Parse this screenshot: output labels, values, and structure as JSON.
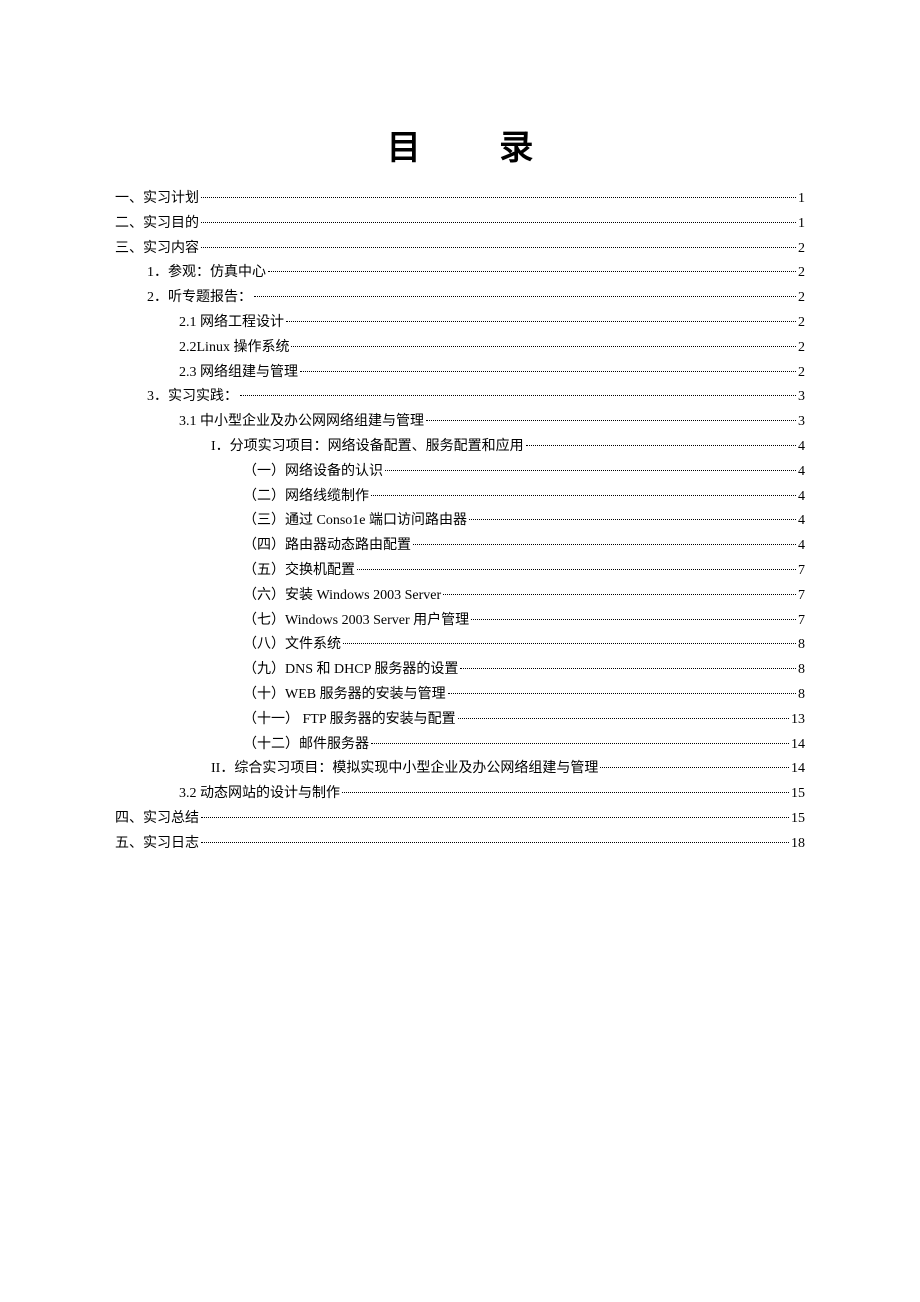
{
  "title": "目 录",
  "toc": [
    {
      "indent": 0,
      "label": "一、实习计划",
      "page": "1"
    },
    {
      "indent": 0,
      "label": "二、实习目的",
      "page": "1"
    },
    {
      "indent": 0,
      "label": "三、实习内容",
      "page": "2"
    },
    {
      "indent": 1,
      "label": "1．参观：仿真中心",
      "page": "2"
    },
    {
      "indent": 1,
      "label": "2．听专题报告：",
      "page": "2"
    },
    {
      "indent": 2,
      "label": "2.1 网络工程设计",
      "page": "2"
    },
    {
      "indent": 2,
      "label": "2.2Linux 操作系统",
      "page": "2"
    },
    {
      "indent": 2,
      "label": "2.3 网络组建与管理",
      "page": "2"
    },
    {
      "indent": 1,
      "label": "3．实习实践：",
      "page": "3"
    },
    {
      "indent": 2,
      "label": "3.1 中小型企业及办公网网络组建与管理",
      "page": "3"
    },
    {
      "indent": 3,
      "label": "I．分项实习项目：网络设备配置、服务配置和应用",
      "page": "4"
    },
    {
      "indent": 4,
      "label": "（一）网络设备的认识",
      "page": "4"
    },
    {
      "indent": 4,
      "label": "（二）网络线缆制作",
      "page": "4"
    },
    {
      "indent": 4,
      "label": "（三）通过 Conso1e 端口访问路由器",
      "page": "4"
    },
    {
      "indent": 4,
      "label": "（四）路由器动态路由配置",
      "page": "4"
    },
    {
      "indent": 4,
      "label": "（五）交换机配置",
      "page": "7"
    },
    {
      "indent": 4,
      "label": "（六）安装 Windows 2003 Server",
      "page": "7"
    },
    {
      "indent": 4,
      "label": "（七）Windows 2003 Server 用户管理",
      "page": "7"
    },
    {
      "indent": 4,
      "label": "（八）文件系统",
      "page": "8"
    },
    {
      "indent": 4,
      "label": "（九）DNS 和 DHCP 服务器的设置",
      "page": "8"
    },
    {
      "indent": 4,
      "label": "（十）WEB 服务器的安装与管理",
      "page": "8"
    },
    {
      "indent": 4,
      "label": "（十一）  FTP 服务器的安装与配置",
      "page": "13"
    },
    {
      "indent": 4,
      "label": "（十二）邮件服务器",
      "page": "14"
    },
    {
      "indent": 3,
      "label": "II．综合实习项目：模拟实现中小型企业及办公网络组建与管理",
      "page": "14"
    },
    {
      "indent": 2,
      "label": "3.2 动态网站的设计与制作",
      "page": "15"
    },
    {
      "indent": 0,
      "label": "四、实习总结",
      "page": "15"
    },
    {
      "indent": 0,
      "label": "五、实习日志",
      "page": "18"
    }
  ]
}
